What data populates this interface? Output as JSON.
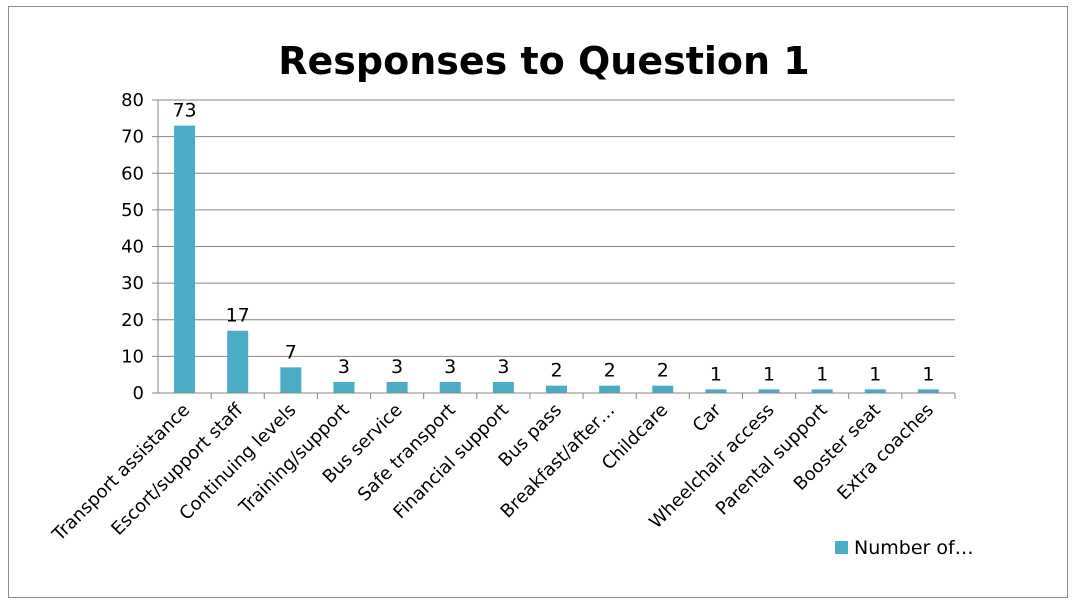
{
  "chart_data": {
    "type": "bar",
    "title": "Responses to Question 1",
    "categories": [
      "Transport assistance",
      "Escort/support staff",
      "Continuing levels",
      "Training/support",
      "Bus service",
      "Safe transport",
      "Financial support",
      "Bus pass",
      "Breakfast/after…",
      "Childcare",
      "Car",
      "Wheelchair access",
      "Parental support",
      "Booster seat",
      "Extra coaches"
    ],
    "series": [
      {
        "name": "Number of…",
        "values": [
          73,
          17,
          7,
          3,
          3,
          3,
          3,
          2,
          2,
          2,
          1,
          1,
          1,
          1,
          1
        ],
        "color": "#4bacc6"
      }
    ],
    "ylim": [
      0,
      80
    ],
    "yticks": [
      0,
      10,
      20,
      30,
      40,
      50,
      60,
      70,
      80
    ],
    "grid": true,
    "data_labels": true,
    "legend_position": "bottom-right"
  }
}
